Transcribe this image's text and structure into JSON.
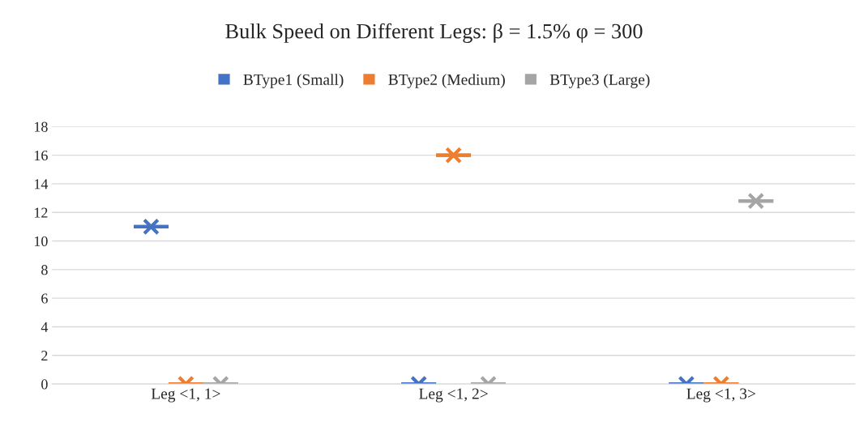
{
  "chart_data": {
    "type": "box",
    "title": "Bulk Speed on Different Legs: β = 1.5% φ = 300",
    "categories": [
      "Leg <1, 1>",
      "Leg <1, 2>",
      "Leg <1, 3>"
    ],
    "series": [
      {
        "name": "BType1 (Small)",
        "color": "#4472c4",
        "boxes": [
          {
            "low": 11,
            "q1": 11,
            "median": 11,
            "q3": 11,
            "high": 11,
            "mean": 11
          },
          {
            "low": 0,
            "q1": 0,
            "median": 0,
            "q3": 0,
            "high": 0,
            "mean": 0
          },
          {
            "low": 0,
            "q1": 0,
            "median": 0,
            "q3": 0,
            "high": 0,
            "mean": 0
          }
        ]
      },
      {
        "name": "BType2 (Medium)",
        "color": "#ed7d31",
        "boxes": [
          {
            "low": 0,
            "q1": 0,
            "median": 0,
            "q3": 0,
            "high": 0,
            "mean": 0
          },
          {
            "low": 16,
            "q1": 16,
            "median": 16,
            "q3": 16,
            "high": 16,
            "mean": 16
          },
          {
            "low": 0,
            "q1": 0,
            "median": 0,
            "q3": 0,
            "high": 0,
            "mean": 0
          }
        ]
      },
      {
        "name": "BType3 (Large)",
        "color": "#a5a5a5",
        "boxes": [
          {
            "low": 0,
            "q1": 0,
            "median": 0,
            "q3": 0,
            "high": 0,
            "mean": 0
          },
          {
            "low": 0,
            "q1": 0,
            "median": 0,
            "q3": 0,
            "high": 0,
            "mean": 0
          },
          {
            "low": 12.8,
            "q1": 12.8,
            "median": 12.8,
            "q3": 12.8,
            "high": 12.8,
            "mean": 12.8
          }
        ]
      }
    ],
    "ylim": [
      0,
      18
    ],
    "yticks": [
      0,
      2,
      4,
      6,
      8,
      10,
      12,
      14,
      16,
      18
    ],
    "grid": "y",
    "legend": "top",
    "marker": "cross"
  }
}
